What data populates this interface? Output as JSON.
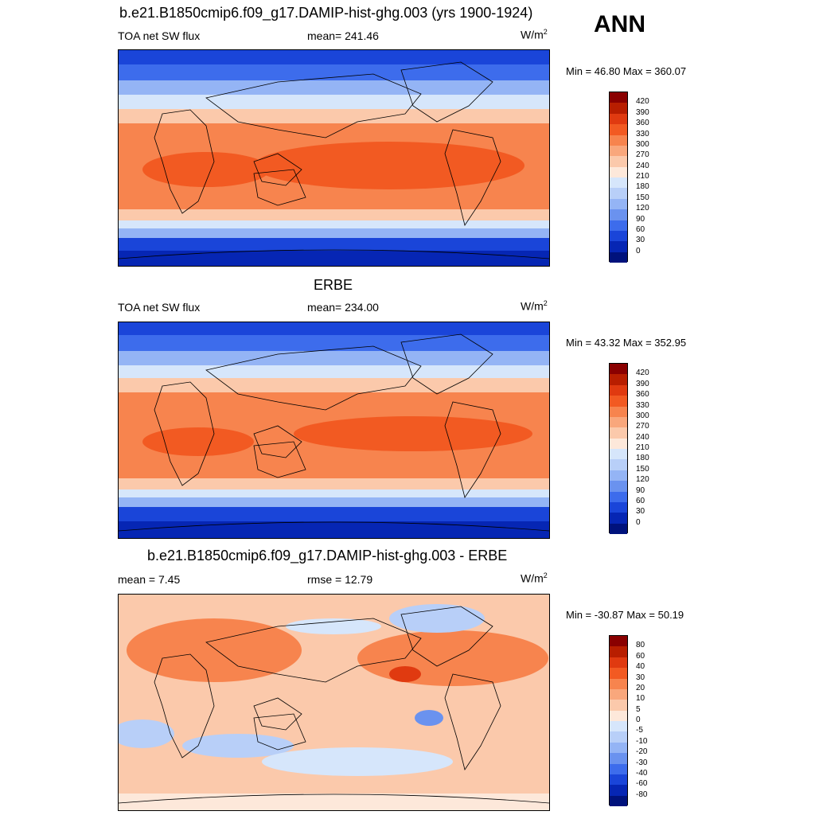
{
  "season": "ANN",
  "panels": [
    {
      "title": "b.e21.B1850cmip6.f09_g17.DAMIP-hist-ghg.003 (yrs 1900-1924)",
      "left_label": "TOA net SW flux",
      "center_label": "mean= 241.46",
      "units": "W/m",
      "units_sup": "2",
      "minmax": "Min =  46.80 Max = 360.07"
    },
    {
      "title": "ERBE",
      "left_label": "TOA net SW flux",
      "center_label": "mean= 234.00",
      "units": "W/m",
      "units_sup": "2",
      "minmax": "Min =  43.32 Max = 352.95"
    },
    {
      "title": "b.e21.B1850cmip6.f09_g17.DAMIP-hist-ghg.003 - ERBE",
      "left_label": "mean =   7.45",
      "center_label": "rmse =  12.79",
      "units": "W/m",
      "units_sup": "2",
      "minmax": "Min = -30.87 Max =  50.19"
    }
  ],
  "colorbars": {
    "flux_labels": [
      "420",
      "390",
      "360",
      "330",
      "300",
      "270",
      "240",
      "210",
      "180",
      "150",
      "120",
      "90",
      "60",
      "30",
      "0"
    ],
    "flux_colors": [
      "#8a0000",
      "#b81e00",
      "#e03a10",
      "#f25a22",
      "#f7844e",
      "#f9a77c",
      "#fbc9ab",
      "#fde8da",
      "#d6e6fb",
      "#b8cff8",
      "#94b4f5",
      "#6a92ef",
      "#3d6cec",
      "#1a45d9",
      "#0626b4",
      "#00127c"
    ],
    "diff_labels": [
      "80",
      "60",
      "40",
      "30",
      "20",
      "10",
      "5",
      "0",
      "-5",
      "-10",
      "-20",
      "-30",
      "-40",
      "-60",
      "-80"
    ],
    "diff_colors": [
      "#8a0000",
      "#b81e00",
      "#e03a10",
      "#f25a22",
      "#f7844e",
      "#f9a77c",
      "#fbc9ab",
      "#fde8da",
      "#d6e6fb",
      "#b8cff8",
      "#94b4f5",
      "#6a92ef",
      "#3d6cec",
      "#1a45d9",
      "#0626b4",
      "#00127c"
    ]
  }
}
